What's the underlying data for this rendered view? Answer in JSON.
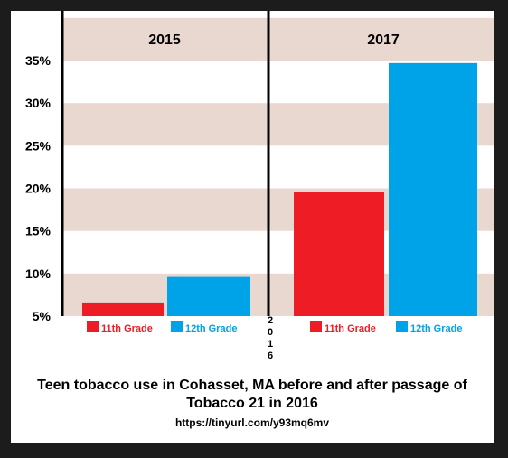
{
  "chart_data": {
    "type": "bar",
    "title_line1": "Teen tobacco use in Cohasset, MA before and after passage of",
    "title_line2": "Tobacco 21 in 2016",
    "source_url": "https://tinyurl.com/y93mq6mv",
    "divider_label": [
      "2",
      "0",
      "1",
      "6"
    ],
    "yticks": [
      "35%",
      "30%",
      "25%",
      "20%",
      "15%",
      "10%",
      "5%"
    ],
    "ylim": [
      5,
      35
    ],
    "grid": "alternating bands",
    "series": [
      {
        "name": "11th Grade",
        "color": "#ee1c25"
      },
      {
        "name": "12th Grade",
        "color": "#00a2e8"
      }
    ],
    "groups": [
      {
        "year": "2015",
        "values": [
          6.6,
          9.6
        ]
      },
      {
        "year": "2017",
        "values": [
          19.6,
          34.7
        ]
      }
    ],
    "band_color": "#e8d8d0"
  }
}
